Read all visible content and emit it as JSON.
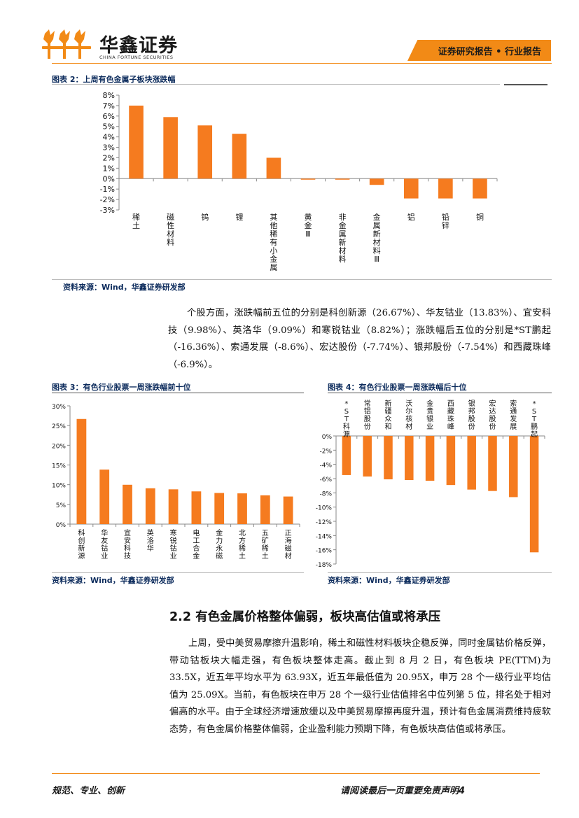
{
  "header": {
    "company_name": "华鑫证券",
    "company_name_en": "CHINA FORTUNE SECURITIES",
    "report_tag": "证券研究报告 • 行业报告"
  },
  "figure2": {
    "title": "图表 2：上周有色金属子板块涨跌幅",
    "source": "资料来源：Wind，华鑫证券研发部"
  },
  "paragraph1": "个股方面，涨跌幅前五位的分别是科创新源（26.67%）、华友钴业（13.83%）、宜安科技（9.98%）、英洛华（9.09%）和寒锐钴业（8.82%）；涨跌幅后五位的分别是*ST鹏起（-16.36%）、索通发展（-8.6%）、宏达股份（-7.74%）、银邦股份（-7.54%）和西藏珠峰（-6.9%）。",
  "figure3": {
    "title": "图表 3：有色行业股票一周涨跌幅前十位",
    "source": "资料来源：Wind，华鑫证券研发部"
  },
  "figure4": {
    "title": "图表 4：有色行业股票一周涨跌幅后十位",
    "source": "资料来源：Wind，华鑫证券研发部"
  },
  "section": {
    "number": "2.2",
    "title": "有色金属价格整体偏弱，板块高估值或将承压"
  },
  "paragraph2": "上周，受中美贸易摩擦升温影响，稀土和磁性材料板块企稳反弹，同时金属钴价格反弹，带动钴板块大幅走强，有色板块整体走高。截止到 8 月 2 日，有色板块 PE(TTM)为 33.5X，近五年平均水平为 63.93X，近五年最低值为 20.95X，申万 28 个一级行业平均估值为 25.09X。当前，有色板块在申万 28 个一级行业估值排名中位列第 5 位，排名处于相对偏高的水平。由于全球经济增速放缓以及中美贸易摩擦再度升温，预计有色金属消费维持疲软态势，有色金属价格整体偏弱，企业盈利能力预期下降，有色板块高估值或将承压。",
  "footer": {
    "left": "规范、专业、创新",
    "right": "请阅读最后一页重要免责声明",
    "page_number": "4"
  },
  "colors": {
    "bar": "#f57b1f",
    "accent": "#f28a16",
    "title_blue": "#0c2b5c"
  },
  "chart_data": [
    {
      "type": "bar",
      "categories": [
        "稀土",
        "磁性材料",
        "钨",
        "锂",
        "其他稀有小金属",
        "黄金Ⅲ",
        "非金属新材料",
        "金属新材料Ⅲ",
        "铝",
        "铅锌",
        "铜"
      ],
      "values": [
        7.0,
        5.9,
        5.1,
        4.3,
        2.0,
        -0.1,
        -0.1,
        -0.6,
        -1.9,
        -1.9,
        -1.9
      ],
      "ylim": [
        -3,
        8
      ],
      "yticks": [
        "8%",
        "7%",
        "6%",
        "5%",
        "4%",
        "3%",
        "2%",
        "1%",
        "0%",
        "-1%",
        "-2%",
        "-3%"
      ],
      "title": "图表 2：上周有色金属子板块涨跌幅",
      "grid": false
    },
    {
      "type": "bar",
      "categories": [
        "科创新源",
        "华友钴业",
        "宜安科技",
        "英洛华",
        "寒锐钴业",
        "电工合金",
        "金力永磁",
        "北方稀土",
        "五矿稀土",
        "正海磁材"
      ],
      "values": [
        26.67,
        13.83,
        9.98,
        9.09,
        8.82,
        8.3,
        7.9,
        7.8,
        7.3,
        7.0
      ],
      "ylim": [
        0,
        30
      ],
      "yticks": [
        "30%",
        "25%",
        "20%",
        "15%",
        "10%",
        "5%",
        "0%"
      ],
      "title": "图表 3：有色行业股票一周涨跌幅前十位",
      "grid": false
    },
    {
      "type": "bar",
      "categories": [
        "*ST科源",
        "常铝股份",
        "新疆众和",
        "沃尔核材",
        "金贵银业",
        "西藏珠峰",
        "银邦股份",
        "宏达股份",
        "索通发展",
        "*ST鹏起"
      ],
      "values": [
        -5.5,
        -5.7,
        -6.1,
        -6.2,
        -6.3,
        -6.9,
        -7.54,
        -7.74,
        -8.6,
        -16.36
      ],
      "ylim": [
        -18,
        0
      ],
      "yticks": [
        "0%",
        "-2%",
        "-4%",
        "-6%",
        "-8%",
        "-10%",
        "-12%",
        "-14%",
        "-16%",
        "-18%"
      ],
      "title": "图表 4：有色行业股票一周涨跌幅后十位",
      "grid": false
    }
  ]
}
